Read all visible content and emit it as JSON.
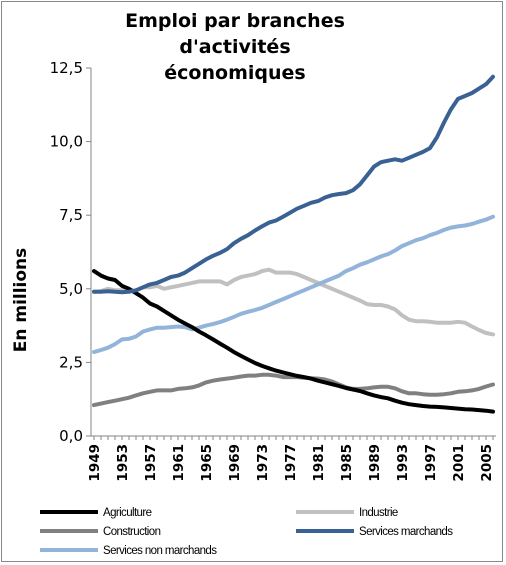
{
  "chart_data": {
    "type": "line",
    "title": "Emploi par branches d'activités économiques",
    "title_lines": [
      "Emploi par branches d'activités",
      "économiques"
    ],
    "ylabel": "En millions",
    "xlabel": "",
    "ylim": [
      0,
      12.5
    ],
    "yticks": [
      "0,0",
      "2,5",
      "5,0",
      "7,5",
      "10,0",
      "12,5"
    ],
    "xticks": [
      "1949",
      "1953",
      "1957",
      "1961",
      "1965",
      "1969",
      "1973",
      "1977",
      "1981",
      "1985",
      "1989",
      "1993",
      "1997",
      "2001",
      "2005"
    ],
    "x": [
      1949,
      1950,
      1951,
      1952,
      1953,
      1954,
      1955,
      1956,
      1957,
      1958,
      1959,
      1960,
      1961,
      1962,
      1963,
      1964,
      1965,
      1966,
      1967,
      1968,
      1969,
      1970,
      1971,
      1972,
      1973,
      1974,
      1975,
      1976,
      1977,
      1978,
      1979,
      1980,
      1981,
      1982,
      1983,
      1984,
      1985,
      1986,
      1987,
      1988,
      1989,
      1990,
      1991,
      1992,
      1993,
      1994,
      1995,
      1996,
      1997,
      1998,
      1999,
      2000,
      2001,
      2002,
      2003,
      2004,
      2005,
      2006
    ],
    "grid": false,
    "legend_position": "bottom",
    "series": [
      {
        "name": "Agriculture",
        "color": "#000000",
        "values": [
          5.6,
          5.45,
          5.35,
          5.3,
          5.1,
          5.0,
          4.85,
          4.7,
          4.5,
          4.4,
          4.25,
          4.1,
          3.95,
          3.82,
          3.7,
          3.55,
          3.42,
          3.28,
          3.14,
          3.0,
          2.85,
          2.72,
          2.6,
          2.48,
          2.38,
          2.3,
          2.22,
          2.16,
          2.1,
          2.04,
          2.0,
          1.95,
          1.88,
          1.82,
          1.76,
          1.7,
          1.63,
          1.58,
          1.53,
          1.45,
          1.38,
          1.32,
          1.28,
          1.2,
          1.13,
          1.08,
          1.05,
          1.02,
          1.0,
          0.99,
          0.97,
          0.95,
          0.93,
          0.91,
          0.9,
          0.88,
          0.86,
          0.83
        ]
      },
      {
        "name": "Industrie",
        "color": "#c0c0c0",
        "values": [
          4.9,
          4.92,
          5.0,
          4.95,
          4.95,
          4.92,
          4.95,
          5.05,
          5.05,
          5.1,
          5.0,
          5.05,
          5.1,
          5.15,
          5.2,
          5.25,
          5.25,
          5.25,
          5.25,
          5.15,
          5.3,
          5.4,
          5.45,
          5.5,
          5.6,
          5.65,
          5.55,
          5.55,
          5.55,
          5.5,
          5.4,
          5.3,
          5.2,
          5.1,
          5.0,
          4.9,
          4.8,
          4.7,
          4.6,
          4.48,
          4.45,
          4.45,
          4.4,
          4.3,
          4.1,
          3.95,
          3.9,
          3.9,
          3.88,
          3.85,
          3.85,
          3.85,
          3.88,
          3.85,
          3.72,
          3.6,
          3.5,
          3.45
        ]
      },
      {
        "name": "Construction",
        "color": "#808080",
        "values": [
          1.05,
          1.1,
          1.15,
          1.2,
          1.25,
          1.3,
          1.38,
          1.45,
          1.5,
          1.55,
          1.55,
          1.55,
          1.6,
          1.62,
          1.65,
          1.72,
          1.82,
          1.88,
          1.92,
          1.95,
          1.98,
          2.02,
          2.05,
          2.05,
          2.08,
          2.08,
          2.05,
          2.0,
          2.0,
          2.0,
          1.98,
          1.96,
          1.95,
          1.92,
          1.85,
          1.75,
          1.65,
          1.6,
          1.6,
          1.62,
          1.65,
          1.67,
          1.67,
          1.62,
          1.52,
          1.45,
          1.45,
          1.42,
          1.4,
          1.4,
          1.42,
          1.45,
          1.5,
          1.52,
          1.55,
          1.6,
          1.68,
          1.75
        ]
      },
      {
        "name": "Services marchands",
        "color": "#3a6194",
        "values": [
          4.9,
          4.9,
          4.92,
          4.9,
          4.88,
          4.9,
          4.95,
          5.05,
          5.15,
          5.2,
          5.3,
          5.4,
          5.45,
          5.55,
          5.7,
          5.85,
          6.0,
          6.12,
          6.22,
          6.35,
          6.55,
          6.7,
          6.82,
          6.98,
          7.12,
          7.25,
          7.32,
          7.45,
          7.58,
          7.72,
          7.82,
          7.92,
          7.98,
          8.1,
          8.18,
          8.22,
          8.25,
          8.35,
          8.55,
          8.85,
          9.15,
          9.3,
          9.35,
          9.4,
          9.35,
          9.45,
          9.55,
          9.65,
          9.78,
          10.15,
          10.65,
          11.1,
          11.45,
          11.55,
          11.65,
          11.8,
          11.95,
          12.2
        ]
      },
      {
        "name": "Services non marchands",
        "color": "#93b4da",
        "values": [
          2.85,
          2.92,
          3.0,
          3.12,
          3.28,
          3.3,
          3.38,
          3.55,
          3.62,
          3.68,
          3.68,
          3.7,
          3.72,
          3.7,
          3.62,
          3.68,
          3.75,
          3.8,
          3.87,
          3.95,
          4.05,
          4.15,
          4.22,
          4.28,
          4.35,
          4.45,
          4.55,
          4.65,
          4.75,
          4.85,
          4.95,
          5.05,
          5.15,
          5.25,
          5.35,
          5.45,
          5.6,
          5.7,
          5.82,
          5.9,
          6.0,
          6.1,
          6.18,
          6.3,
          6.45,
          6.55,
          6.65,
          6.72,
          6.82,
          6.9,
          7.0,
          7.08,
          7.12,
          7.15,
          7.2,
          7.28,
          7.35,
          7.45
        ]
      }
    ]
  }
}
